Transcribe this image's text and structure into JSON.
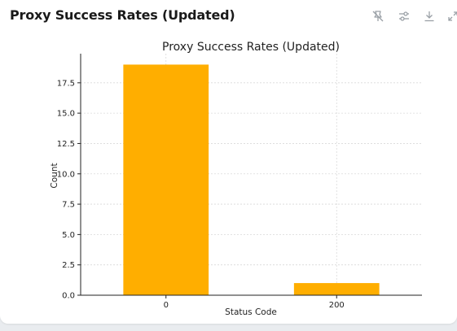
{
  "panel": {
    "title": "Proxy Success Rates (Updated)"
  },
  "toolbar": {
    "icons": [
      "pin-off-icon",
      "adjust-sliders-icon",
      "download-icon",
      "expand-icon"
    ]
  },
  "colors": {
    "bar": "#ffae00",
    "grid": "#d9d9d9",
    "axis": "#222222",
    "icon": "#9aa0a6"
  },
  "chart_data": {
    "type": "bar",
    "title": "Proxy Success Rates (Updated)",
    "xlabel": "Status Code",
    "ylabel": "Count",
    "categories": [
      "0",
      "200"
    ],
    "values": [
      19,
      1
    ],
    "ylim": [
      0,
      19.9
    ],
    "yticks": [
      "0.0",
      "2.5",
      "5.0",
      "7.5",
      "10.0",
      "12.5",
      "15.0",
      "17.5"
    ],
    "ytick_values": [
      0,
      2.5,
      5,
      7.5,
      10,
      12.5,
      15,
      17.5
    ],
    "grid": true,
    "legend": "none"
  }
}
